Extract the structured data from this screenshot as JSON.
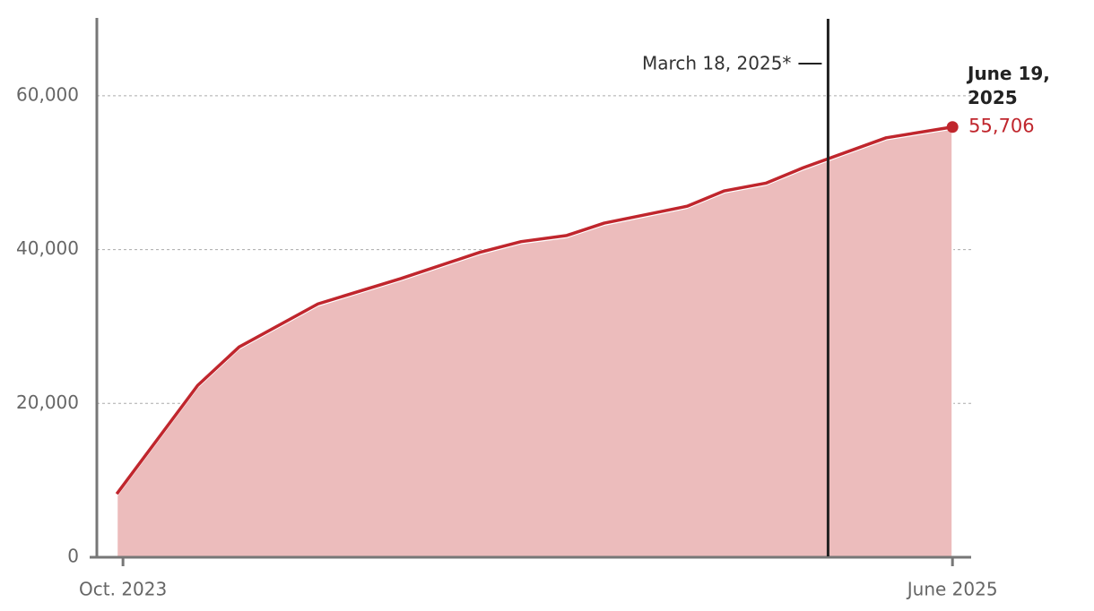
{
  "chart_data": {
    "type": "area",
    "x": [
      -0.15,
      1.8,
      2.8,
      4.7,
      6.7,
      8.6,
      9.6,
      10.7,
      11.6,
      13.6,
      14.5,
      15.5,
      16.4,
      18.4,
      20
    ],
    "values": [
      8000,
      22100,
      27100,
      32700,
      36000,
      39400,
      40800,
      41600,
      43200,
      45400,
      47400,
      48400,
      50400,
      54300,
      55706
    ],
    "color": "#c0262d",
    "fill": "#ecbcbc",
    "xlim": [
      -0.63,
      20.45
    ],
    "xticks": [
      {
        "value": 0,
        "label": "Oct. 2023"
      },
      {
        "value": 20,
        "label": "June 2025"
      }
    ],
    "ylim": [
      0,
      70000
    ],
    "yticks": [
      0,
      {
        "value": 20000,
        "label": "20,000"
      },
      {
        "value": 40000,
        "label": "40,000"
      },
      {
        "value": 60000,
        "label": "60,000"
      }
    ],
    "grid": true,
    "annotation": {
      "text": "March 18, 2025*",
      "x": 17.0
    },
    "end_label": {
      "date": "June 19, 2025",
      "value_label": "55,706"
    }
  }
}
